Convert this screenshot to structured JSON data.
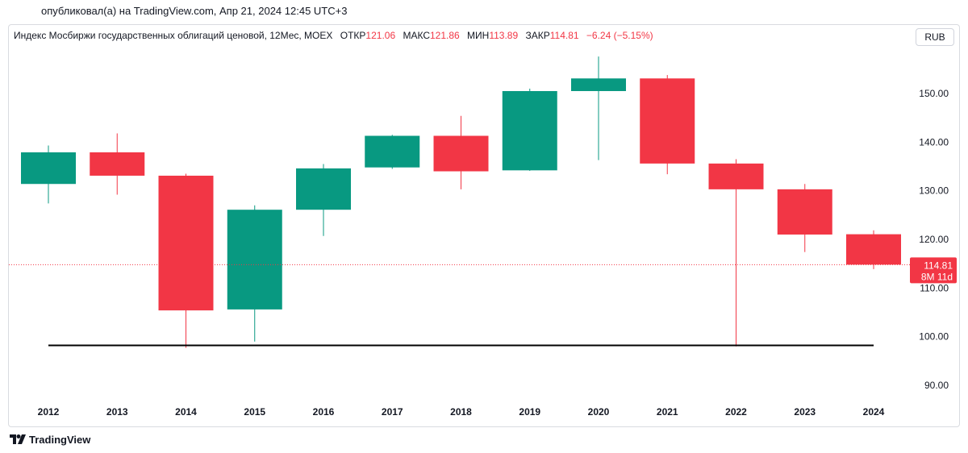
{
  "header": {
    "published": "опубликовал(а) на TradingView.com, Апр 21, 2024 12:45 UTC+3"
  },
  "legend": {
    "symbol": "Индекс Мосбиржи государственных облигаций ценовой, 12Мес, MOEX",
    "open_label": "ОТКР",
    "open": "121.06",
    "high_label": "МАКС",
    "high": "121.86",
    "low_label": "МИН",
    "low": "113.89",
    "close_label": "ЗАКР",
    "close": "114.81",
    "change": "−6.24 (−5.15%)"
  },
  "currency_button": "RUB",
  "price_tag": {
    "price": "114.81",
    "countdown": "8M 11d"
  },
  "footer": {
    "brand": "TradingView",
    "logo_icon": "tradingview-logo-icon"
  },
  "colors": {
    "up": "#089981",
    "down": "#f23645",
    "text": "#131722",
    "hline": "#000000"
  },
  "chart_data": {
    "type": "candlestick",
    "x": [
      "2012",
      "2013",
      "2014",
      "2015",
      "2016",
      "2017",
      "2018",
      "2019",
      "2020",
      "2021",
      "2022",
      "2023",
      "2024"
    ],
    "open": [
      131.4,
      137.9,
      133.1,
      105.6,
      126.1,
      134.8,
      141.3,
      134.2,
      150.5,
      153.1,
      135.6,
      130.3,
      121.06
    ],
    "high": [
      139.3,
      141.8,
      133.5,
      127.0,
      135.5,
      141.5,
      145.4,
      151.0,
      157.6,
      153.8,
      136.5,
      131.4,
      121.86
    ],
    "low": [
      127.4,
      129.2,
      97.7,
      99.0,
      120.7,
      134.5,
      130.3,
      134.1,
      136.3,
      133.4,
      98.0,
      117.4,
      113.89
    ],
    "close": [
      137.9,
      133.1,
      105.4,
      126.1,
      134.6,
      141.3,
      134.0,
      150.5,
      153.1,
      135.6,
      130.3,
      121.0,
      114.81
    ],
    "y_ticks": [
      "90.00",
      "100.00",
      "110.00",
      "120.00",
      "130.00",
      "140.00",
      "150.00"
    ],
    "ylim": [
      86,
      160
    ],
    "last_price": 114.81,
    "horizontal_line": {
      "value": 98.2,
      "from": "2012",
      "to": "2024"
    },
    "grid": false
  }
}
